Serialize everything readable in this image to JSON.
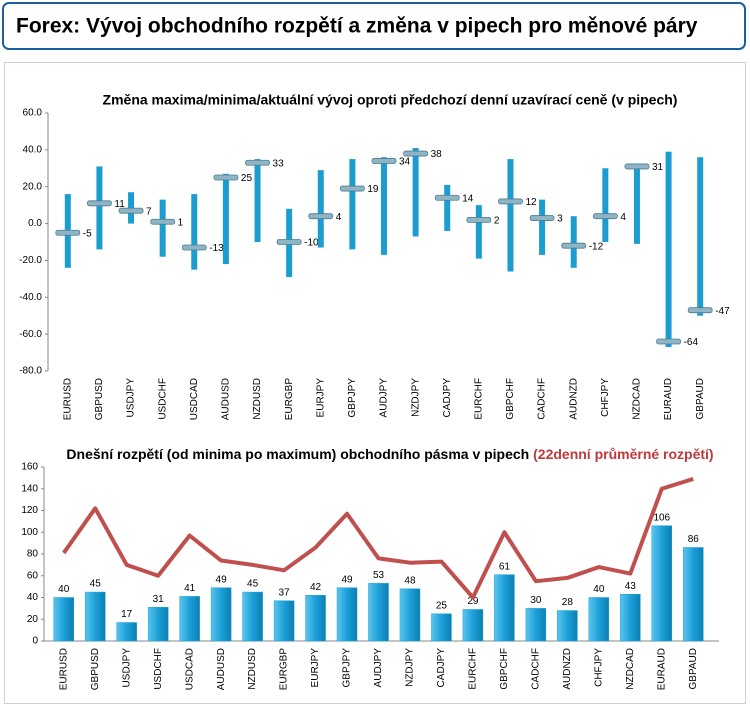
{
  "header": {
    "title": "Forex: Vývoj obchodního rozpětí a změna v pipech pro měnové páry"
  },
  "chart_data": [
    {
      "type": "range",
      "title": "Změna maxima/minima/aktuální vývoj oproti předchozí denní uzavírací ceně (v pipech)",
      "categories": [
        "EURUSD",
        "GBPUSD",
        "USDJPY",
        "USDCHF",
        "USDCAD",
        "AUDUSD",
        "NZDUSD",
        "EURGBP",
        "EURJPY",
        "GBPJPY",
        "AUDJPY",
        "NZDJPY",
        "CADJPY",
        "EURCHF",
        "GBPCHF",
        "CADCHF",
        "AUDNZD",
        "CHFJPY",
        "NZDCAD",
        "EURAUD",
        "GBPAUD"
      ],
      "high": [
        16,
        31,
        17,
        13,
        16,
        27,
        35,
        8,
        29,
        35,
        36,
        41,
        21,
        10,
        35,
        13,
        4,
        30,
        32,
        39,
        36
      ],
      "low": [
        -24,
        -14,
        0,
        -18,
        -25,
        -22,
        -10,
        -29,
        -13,
        -14,
        -17,
        -7,
        -4,
        -19,
        -26,
        -17,
        -24,
        -10,
        -11,
        -67,
        -50
      ],
      "values": [
        -5,
        11,
        7,
        1,
        -13,
        25,
        33,
        -10,
        4,
        19,
        34,
        38,
        14,
        2,
        12,
        3,
        -12,
        4,
        31,
        -64,
        -47
      ],
      "bar_color": "#1b9dd0",
      "marker_color": "#8fb4c4",
      "ylim": [
        -80,
        60
      ],
      "yticks": [
        {
          "value": -80,
          "label": "-80.0"
        },
        {
          "value": -60,
          "label": "-60.0"
        },
        {
          "value": -40,
          "label": "-40.0"
        },
        {
          "value": -20,
          "label": "-20.0"
        },
        {
          "value": 0,
          "label": "0.0"
        },
        {
          "value": 20,
          "label": "20.0"
        },
        {
          "value": 40,
          "label": "40.0"
        },
        {
          "value": 60,
          "label": "60.0"
        }
      ],
      "grid": false
    },
    {
      "type": "bar",
      "title": "Dnešní rozpětí (od minima po maximum) obchodního pásma v pipech",
      "title_note": "(22denní průměrné rozpětí)",
      "categories": [
        "EURUSD",
        "GBPUSD",
        "USDJPY",
        "USDCHF",
        "USDCAD",
        "AUDUSD",
        "NZDUSD",
        "EURGBP",
        "EURJPY",
        "GBPJPY",
        "AUDJPY",
        "NZDJPY",
        "CADJPY",
        "EURCHF",
        "GBPCHF",
        "CADCHF",
        "AUDNZD",
        "CHFJPY",
        "NZDCAD",
        "EURAUD",
        "GBPAUD"
      ],
      "series": [
        {
          "type": "bar",
          "color": "#1ca0d8",
          "values": [
            40,
            45,
            17,
            31,
            41,
            49,
            45,
            37,
            42,
            49,
            53,
            48,
            25,
            29,
            61,
            30,
            28,
            40,
            43,
            106,
            86
          ]
        },
        {
          "type": "line",
          "color": "#c0504d",
          "values": [
            81,
            122,
            70,
            60,
            97,
            74,
            70,
            65,
            86,
            117,
            76,
            72,
            73,
            40,
            100,
            55,
            58,
            68,
            62,
            140,
            149
          ]
        }
      ],
      "ylim": [
        0,
        160
      ],
      "yticks": [
        0,
        20,
        40,
        60,
        80,
        100,
        120,
        140,
        160
      ],
      "grid": false
    }
  ]
}
